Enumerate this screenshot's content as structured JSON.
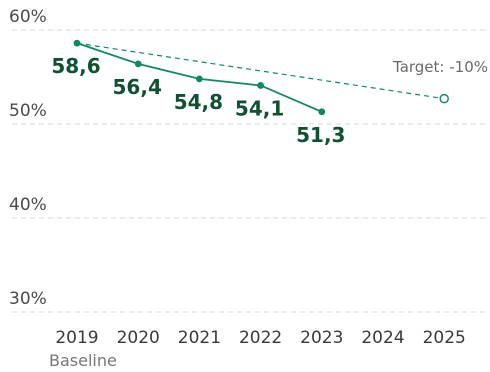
{
  "chart_data": {
    "type": "line",
    "x": [
      "2019",
      "2020",
      "2021",
      "2022",
      "2023",
      "2024",
      "2025"
    ],
    "x_sublabels": {
      "2019": "Baseline"
    },
    "y_ticks": [
      "60%",
      "50%",
      "40%",
      "30%"
    ],
    "ylim": [
      30,
      60
    ],
    "grid": true,
    "series": [
      {
        "style": "solid",
        "color": "#0f8a5f",
        "points": [
          {
            "x": "2019",
            "y": 58.6,
            "label": "58,6"
          },
          {
            "x": "2020",
            "y": 56.4,
            "label": "56,4"
          },
          {
            "x": "2021",
            "y": 54.8,
            "label": "54,8"
          },
          {
            "x": "2022",
            "y": 54.1,
            "label": "54,1"
          },
          {
            "x": "2023",
            "y": 51.3,
            "label": "51,3"
          }
        ]
      },
      {
        "name": "Target: -10%",
        "style": "dashed",
        "color": "#0f8a5f",
        "points": [
          {
            "x": "2019",
            "y": 58.6
          },
          {
            "x": "2025",
            "y": 52.7
          }
        ]
      }
    ],
    "colors": {
      "line": "#0f8a5f",
      "labels": "#0f5132",
      "grid": "#d9d9d9"
    }
  }
}
